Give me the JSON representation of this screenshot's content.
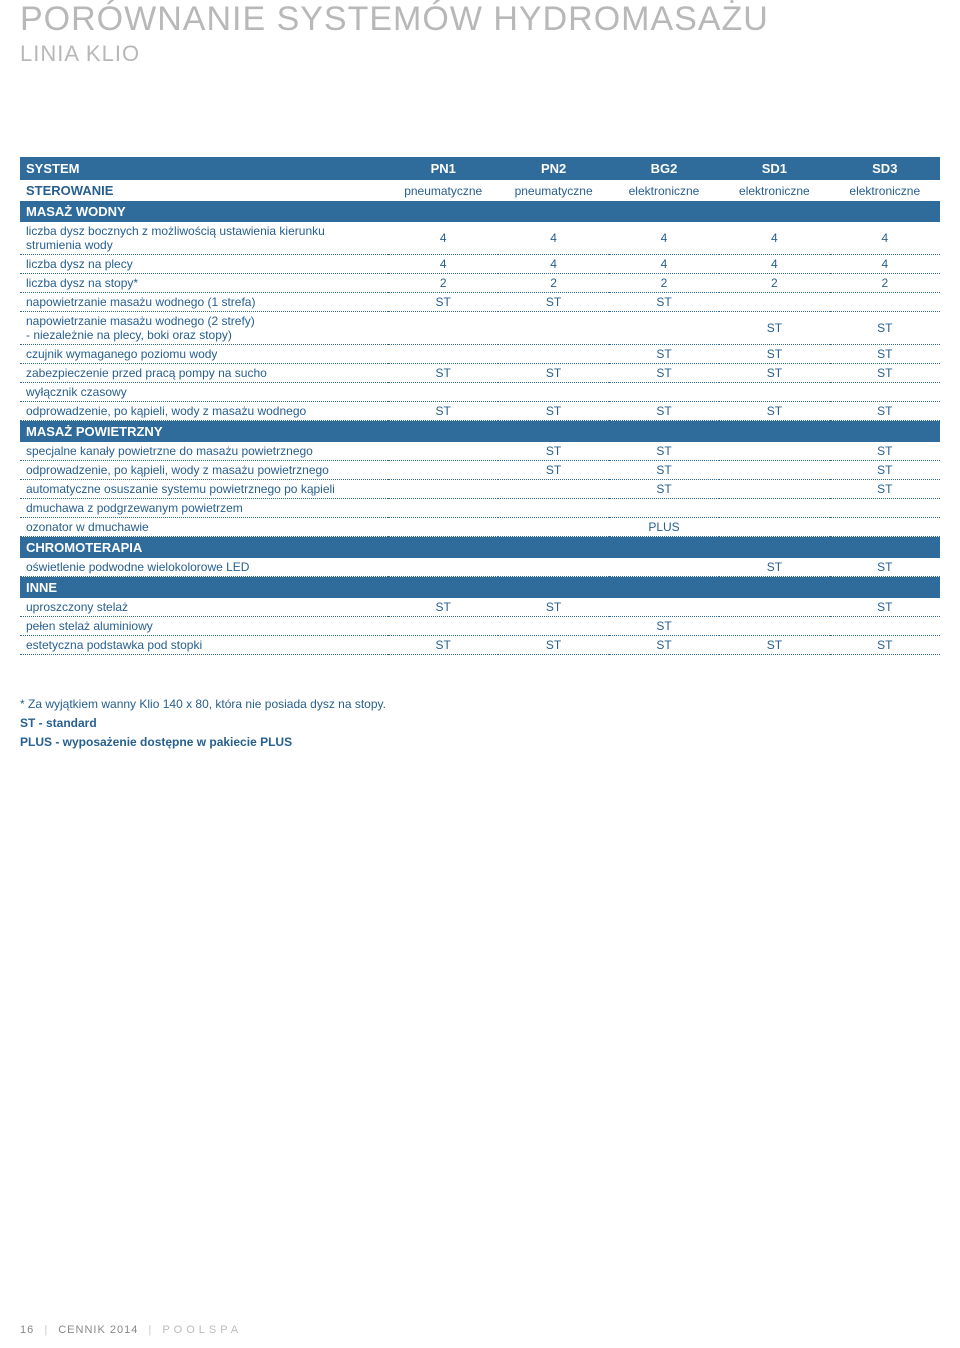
{
  "title": "PORÓWNANIE SYSTEMÓW HYDROMASAŻU",
  "subtitle": "LINIA KLIO",
  "columns": [
    "PN1",
    "PN2",
    "BG2",
    "SD1",
    "SD3"
  ],
  "sterowanie_label": "STEROWANIE",
  "system_label": "SYSTEM",
  "sterowanie_values": [
    "pneumatyczne",
    "pneumatyczne",
    "elektroniczne",
    "elektroniczne",
    "elektroniczne"
  ],
  "sections": [
    {
      "title": "MASAŻ WODNY",
      "rows": [
        {
          "label": "liczba dysz bocznych z możliwością ustawienia kierunku strumienia wody",
          "v": [
            "4",
            "4",
            "4",
            "4",
            "4"
          ]
        },
        {
          "label": "liczba dysz na plecy",
          "v": [
            "4",
            "4",
            "4",
            "4",
            "4"
          ]
        },
        {
          "label": "liczba dysz na stopy*",
          "v": [
            "2",
            "2",
            "2",
            "2",
            "2"
          ]
        },
        {
          "label": "napowietrzanie masażu wodnego (1 strefa)",
          "v": [
            "ST",
            "ST",
            "ST",
            "",
            ""
          ]
        },
        {
          "label": "napowietrzanie masażu wodnego (2 strefy)",
          "sublabel": "- niezależnie na plecy, boki oraz stopy)",
          "v": [
            "",
            "",
            "",
            "ST",
            "ST"
          ]
        },
        {
          "label": "czujnik wymaganego poziomu wody",
          "v": [
            "",
            "",
            "ST",
            "ST",
            "ST"
          ]
        },
        {
          "label": "zabezpieczenie przed pracą pompy na sucho",
          "v": [
            "ST",
            "ST",
            "ST",
            "ST",
            "ST"
          ]
        },
        {
          "label": "wyłącznik czasowy",
          "v": [
            "",
            "",
            "",
            "",
            ""
          ]
        },
        {
          "label": "odprowadzenie, po kąpieli, wody z masażu wodnego",
          "v": [
            "ST",
            "ST",
            "ST",
            "ST",
            "ST"
          ]
        }
      ]
    },
    {
      "title": "MASAŻ POWIETRZNY",
      "rows": [
        {
          "label": "specjalne kanały powietrzne do masażu powietrznego",
          "v": [
            "",
            "ST",
            "ST",
            "",
            "ST"
          ]
        },
        {
          "label": "odprowadzenie, po kąpieli, wody z masażu powietrznego",
          "v": [
            "",
            "ST",
            "ST",
            "",
            "ST"
          ]
        },
        {
          "label": "automatyczne osuszanie systemu powietrznego po kąpieli",
          "v": [
            "",
            "",
            "ST",
            "",
            "ST"
          ]
        },
        {
          "label": "dmuchawa z podgrzewanym powietrzem",
          "v": [
            "",
            "",
            "",
            "",
            ""
          ]
        },
        {
          "label": "ozonator w dmuchawie",
          "v": [
            "",
            "",
            "PLUS",
            "",
            ""
          ]
        }
      ]
    },
    {
      "title": "CHROMOTERAPIA",
      "rows": [
        {
          "label": "oświetlenie podwodne wielokolorowe LED",
          "v": [
            "",
            "",
            "",
            "ST",
            "ST"
          ]
        }
      ]
    },
    {
      "title": "INNE",
      "rows": [
        {
          "label": "uproszczony stelaż",
          "v": [
            "ST",
            "ST",
            "",
            "",
            "ST"
          ]
        },
        {
          "label": "pełen stelaż aluminiowy",
          "v": [
            "",
            "",
            "ST",
            "",
            ""
          ]
        },
        {
          "label": "estetyczna podstawka pod stopki",
          "v": [
            "ST",
            "ST",
            "ST",
            "ST",
            "ST"
          ]
        }
      ]
    }
  ],
  "footnote": {
    "line1": "* Za wyjątkiem wanny Klio 140 x 80, która nie posiada dysz na stopy.",
    "line2": "ST - standard",
    "line3": "PLUS - wyposażenie dostępne w pakiecie PLUS"
  },
  "footer": {
    "page": "16",
    "doc": "CENNIK 2014",
    "brand": "POOLSPA"
  },
  "colors": {
    "header_bg": "#2f6b9b",
    "text": "#275f8e",
    "muted": "#b8b8b8"
  }
}
